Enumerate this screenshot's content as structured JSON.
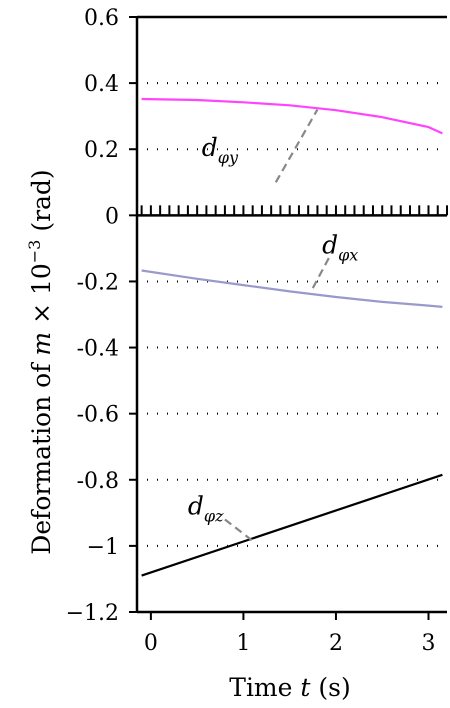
{
  "chart_data": {
    "type": "line",
    "xlabel": {
      "prefix": "Time ",
      "var": "t",
      "suffix": " (s)"
    },
    "ylabel": {
      "prefix": "Deformation of ",
      "var": "m",
      "middle": " × 10",
      "exp": "−3",
      "suffix": " (rad)"
    },
    "xlim": [
      -0.15,
      3.2
    ],
    "ylim": [
      -1.2,
      0.6
    ],
    "x_ticks": [
      0,
      1,
      2,
      3
    ],
    "x_tick_labels": [
      "0",
      "1",
      "2",
      "3"
    ],
    "y_ticks": [
      0.6,
      0.4,
      0.2,
      0,
      -0.2,
      -0.4,
      -0.6,
      -0.8,
      -1,
      -1.2
    ],
    "y_tick_labels": [
      "0.6",
      "0.4",
      "0.2",
      "0",
      "-0.2",
      "-0.4",
      "-0.6",
      "-0.8",
      "−1",
      "−1.2"
    ],
    "grid": "horizontal dotted",
    "series": [
      {
        "name": "d_φy",
        "label_base": "d",
        "label_sub": "φy",
        "color": "#ff44ff",
        "x": [
          -0.1,
          0.5,
          1.0,
          1.5,
          2.0,
          2.5,
          3.0,
          3.15
        ],
        "y": [
          0.352,
          0.349,
          0.342,
          0.333,
          0.318,
          0.297,
          0.267,
          0.248
        ]
      },
      {
        "name": "d_φx",
        "label_base": "d",
        "label_sub": "φx",
        "color": "#9999cc",
        "x": [
          -0.1,
          0.5,
          1.0,
          1.5,
          2.0,
          2.5,
          3.0,
          3.15
        ],
        "y": [
          -0.167,
          -0.192,
          -0.211,
          -0.23,
          -0.247,
          -0.262,
          -0.273,
          -0.277
        ]
      },
      {
        "name": "d_φz",
        "label_base": "d",
        "label_sub": "φz",
        "color": "#000000",
        "x": [
          -0.1,
          3.15
        ],
        "y": [
          -1.09,
          -0.785
        ]
      }
    ],
    "annotations": [
      {
        "series": 0,
        "text_at": [
          0.55,
          0.18
        ],
        "leader_from": [
          1.35,
          0.1
        ],
        "leader_to": [
          1.8,
          0.32
        ]
      },
      {
        "series": 1,
        "text_at": [
          1.85,
          -0.115
        ],
        "leader_from": [
          1.75,
          -0.22
        ],
        "leader_to": [
          1.95,
          -0.115
        ]
      },
      {
        "series": 2,
        "text_at": [
          0.4,
          -0.905
        ],
        "leader_from": [
          0.8,
          -0.92
        ],
        "leader_to": [
          1.1,
          -0.985
        ]
      }
    ]
  }
}
